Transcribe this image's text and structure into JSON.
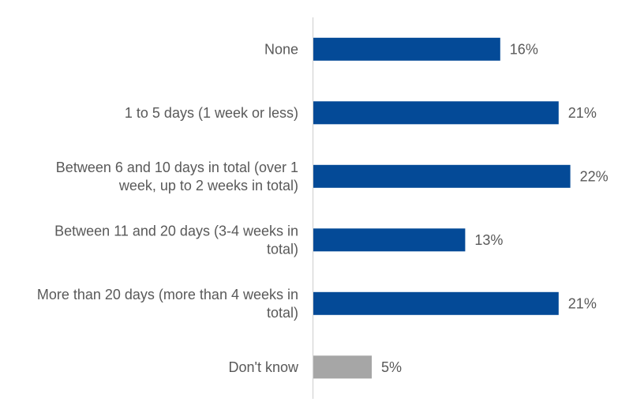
{
  "chart_data": {
    "type": "bar",
    "orientation": "horizontal",
    "categories": [
      [
        "None"
      ],
      [
        "1 to 5 days (1 week or less)"
      ],
      [
        "Between 6 and 10 days in total (over 1",
        "week, up to 2 weeks in total)"
      ],
      [
        "Between 11 and 20 days (3-4 weeks in",
        "total)"
      ],
      [
        "More than 20 days (more than 4 weeks in",
        "total)"
      ],
      [
        "Don't know"
      ]
    ],
    "values": [
      16,
      21,
      22,
      13,
      21,
      5
    ],
    "value_labels": [
      "16%",
      "21%",
      "22%",
      "13%",
      "21%",
      "5%"
    ],
    "bar_colors": [
      "#044A97",
      "#044A97",
      "#044A97",
      "#044A97",
      "#044A97",
      "#A6A6A6"
    ],
    "xlim": [
      0,
      22
    ],
    "title": "",
    "xlabel": "",
    "ylabel": "",
    "grid": false,
    "legend": "none"
  }
}
